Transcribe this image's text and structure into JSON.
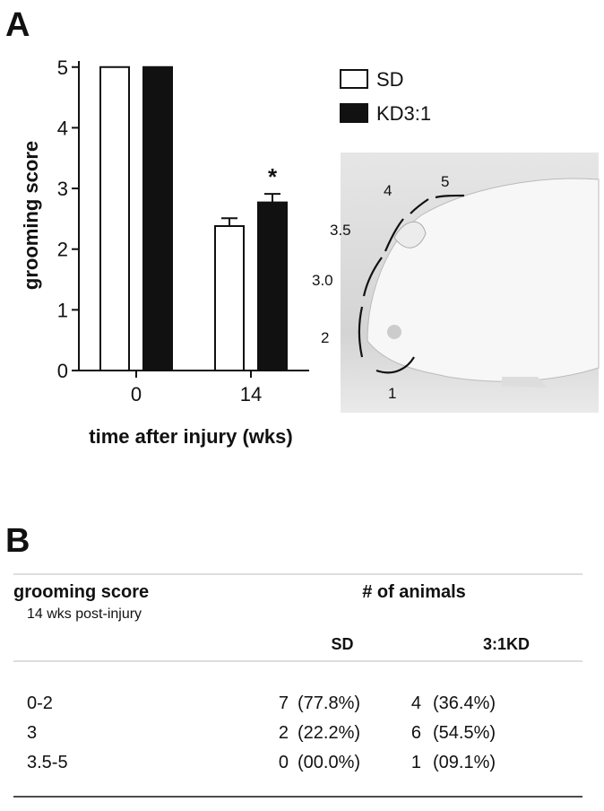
{
  "panel_a_label": "A",
  "chart_data": {
    "type": "bar",
    "ylabel": "grooming score",
    "xlabel": "time after injury (wks)",
    "categories": [
      "0",
      "14"
    ],
    "series": [
      {
        "name": "SD",
        "color": "#ffffff",
        "values": [
          5,
          2.38
        ],
        "errors": [
          0,
          0.13
        ]
      },
      {
        "name": "KD3:1",
        "color": "#111111",
        "values": [
          5,
          2.77
        ],
        "errors": [
          0,
          0.14
        ]
      }
    ],
    "ylim": [
      0,
      5.1
    ],
    "yticks": [
      0,
      1,
      2,
      3,
      4,
      5
    ],
    "annotation": "*",
    "legend": "top-right"
  },
  "photo_labels": [
    "1",
    "2",
    "3.0",
    "3.5",
    "4",
    "5"
  ],
  "panel_b_label": "B",
  "table": {
    "header": {
      "title": "grooming score",
      "subtitle": "14 wks post-injury",
      "group": "# of animals",
      "columns": [
        "SD",
        "3:1KD"
      ]
    },
    "rows": [
      [
        "0-2",
        "7",
        "(77.8%)",
        "4",
        "(36.4%)"
      ],
      [
        "3",
        "2",
        "(22.2%)",
        "6",
        "(54.5%)"
      ],
      [
        "3.5-5",
        "0",
        "(00.0%)",
        "1",
        "(09.1%)"
      ]
    ]
  }
}
